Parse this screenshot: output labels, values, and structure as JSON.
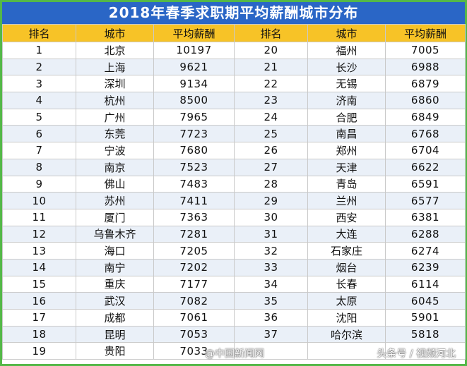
{
  "title": "2018年春季求职期平均薪酬城市分布",
  "headers": [
    "排名",
    "城市",
    "平均薪酬",
    "排名",
    "城市",
    "平均薪酬"
  ],
  "rows": [
    {
      "l_rank": "1",
      "l_city": "北京",
      "l_pay": "10197",
      "r_rank": "20",
      "r_city": "福州",
      "r_pay": "7005"
    },
    {
      "l_rank": "2",
      "l_city": "上海",
      "l_pay": "9621",
      "r_rank": "21",
      "r_city": "长沙",
      "r_pay": "6988"
    },
    {
      "l_rank": "3",
      "l_city": "深圳",
      "l_pay": "9134",
      "r_rank": "22",
      "r_city": "无锡",
      "r_pay": "6879"
    },
    {
      "l_rank": "4",
      "l_city": "杭州",
      "l_pay": "8500",
      "r_rank": "23",
      "r_city": "济南",
      "r_pay": "6860"
    },
    {
      "l_rank": "5",
      "l_city": "广州",
      "l_pay": "7965",
      "r_rank": "24",
      "r_city": "合肥",
      "r_pay": "6849"
    },
    {
      "l_rank": "6",
      "l_city": "东莞",
      "l_pay": "7723",
      "r_rank": "25",
      "r_city": "南昌",
      "r_pay": "6768"
    },
    {
      "l_rank": "7",
      "l_city": "宁波",
      "l_pay": "7680",
      "r_rank": "26",
      "r_city": "郑州",
      "r_pay": "6704"
    },
    {
      "l_rank": "8",
      "l_city": "南京",
      "l_pay": "7523",
      "r_rank": "27",
      "r_city": "天津",
      "r_pay": "6622"
    },
    {
      "l_rank": "9",
      "l_city": "佛山",
      "l_pay": "7483",
      "r_rank": "28",
      "r_city": "青岛",
      "r_pay": "6591"
    },
    {
      "l_rank": "10",
      "l_city": "苏州",
      "l_pay": "7411",
      "r_rank": "29",
      "r_city": "兰州",
      "r_pay": "6577"
    },
    {
      "l_rank": "11",
      "l_city": "厦门",
      "l_pay": "7363",
      "r_rank": "30",
      "r_city": "西安",
      "r_pay": "6381"
    },
    {
      "l_rank": "12",
      "l_city": "乌鲁木齐",
      "l_pay": "7281",
      "r_rank": "31",
      "r_city": "大连",
      "r_pay": "6288"
    },
    {
      "l_rank": "13",
      "l_city": "海口",
      "l_pay": "7205",
      "r_rank": "32",
      "r_city": "石家庄",
      "r_pay": "6274"
    },
    {
      "l_rank": "14",
      "l_city": "南宁",
      "l_pay": "7202",
      "r_rank": "33",
      "r_city": "烟台",
      "r_pay": "6239"
    },
    {
      "l_rank": "15",
      "l_city": "重庆",
      "l_pay": "7177",
      "r_rank": "34",
      "r_city": "长春",
      "r_pay": "6114"
    },
    {
      "l_rank": "16",
      "l_city": "武汉",
      "l_pay": "7082",
      "r_rank": "35",
      "r_city": "太原",
      "r_pay": "6045"
    },
    {
      "l_rank": "17",
      "l_city": "成都",
      "l_pay": "7061",
      "r_rank": "36",
      "r_city": "沈阳",
      "r_pay": "5901"
    },
    {
      "l_rank": "18",
      "l_city": "昆明",
      "l_pay": "7053",
      "r_rank": "37",
      "r_city": "哈尔滨",
      "r_pay": "5818"
    },
    {
      "l_rank": "19",
      "l_city": "贵阳",
      "l_pay": "7033",
      "r_rank": "",
      "r_city": "",
      "r_pay": ""
    }
  ],
  "watermarks": {
    "left": "@中国新闻网",
    "right": "头条号 / 视频河北"
  },
  "colors": {
    "title_bg": "#2a66c6",
    "header_bg": "#f7c327",
    "border": "#54b848",
    "stripe": "#eaf0f8"
  }
}
